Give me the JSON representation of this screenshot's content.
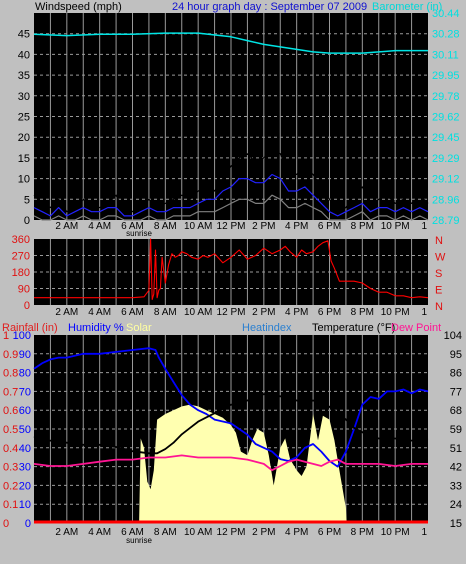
{
  "top_panel": {
    "left_label": "Windspeed (mph)",
    "title": "24 hour graph day : September 07 2009",
    "right_label": "Barometer (in)",
    "left_ticks": [
      "0",
      "5",
      "10",
      "15",
      "20",
      "25",
      "30",
      "35",
      "40",
      "45"
    ],
    "right_ticks": [
      "28.79",
      "28.96",
      "29.12",
      "29.29",
      "29.45",
      "29.62",
      "29.78",
      "29.95",
      "30.11",
      "30.28",
      "30.44"
    ]
  },
  "middle_panel": {
    "left_ticks": [
      "0",
      "90",
      "180",
      "270",
      "360"
    ],
    "compass_letters": [
      "N",
      "W",
      "S",
      "E",
      "N"
    ]
  },
  "bottom_panel": {
    "header": {
      "rain": "Rainfall (in)",
      "humidity": "Humidity %",
      "solar": "Solar",
      "heatindex": "Heatindex",
      "temperature": "Temperature (°F)",
      "dewpoint": "Dew Point"
    },
    "rain_ticks": [
      "0",
      "0.1",
      "0.2",
      "0.3",
      "0.4",
      "0.5",
      "0.6",
      "0.7",
      "0.8",
      "0.9",
      "1"
    ],
    "humidity_ticks": [
      "0",
      "10",
      "20",
      "30",
      "40",
      "50",
      "60",
      "70",
      "80",
      "90",
      "100"
    ],
    "temp_ticks": [
      "15",
      "24",
      "33",
      "42",
      "51",
      "59",
      "68",
      "77",
      "86",
      "95",
      "104"
    ]
  },
  "x_axis": {
    "hour_labels": [
      "2 AM",
      "4 AM",
      "6 AM",
      "8 AM",
      "10 AM",
      "12 PM",
      "2 PM",
      "4 PM",
      "6 PM",
      "8 PM",
      "10 PM",
      "1"
    ],
    "sunrise_label": "sunrise"
  },
  "colors": {
    "background": "#000000",
    "grid": "#9a9a9a",
    "wind_gust": "#000000",
    "wind_avg": "#2222ff",
    "wind_min": "#808080",
    "barometer": "#00e5e5",
    "direction": "#ff0000",
    "humidity": "#0000ff",
    "temperature": "#000000",
    "dewpoint": "#ff1493",
    "solar": "#ffffb0",
    "rain": "#ff0000"
  },
  "chart_data": [
    {
      "type": "line",
      "title": "24 hour graph day : September 07 2009",
      "xlabel": "",
      "ylabel": "Windspeed (mph)",
      "ylim": [
        0,
        50
      ],
      "y2label": "Barometer (in)",
      "y2lim": [
        28.79,
        30.44
      ],
      "x_unit": "hour",
      "xlim": [
        0,
        24
      ],
      "series": [
        {
          "axis": "left",
          "color": "#000000",
          "x": [
            0,
            0.5,
            1,
            1.5,
            2,
            2.5,
            3,
            3.5,
            4,
            4.5,
            5,
            5.5,
            6,
            6.5,
            7,
            7.5,
            8,
            8.5,
            9,
            9.5,
            10,
            10.5,
            11,
            11.5,
            12,
            12.5,
            13,
            13.5,
            14,
            14.5,
            15,
            15.5,
            16,
            16.5,
            17,
            17.5,
            18,
            18.5,
            19,
            19.5,
            20,
            20.5,
            21,
            21.5,
            22,
            22.5,
            23,
            23.5,
            24
          ],
          "values": [
            6,
            4,
            3,
            5,
            2,
            3,
            5,
            4,
            3,
            4,
            6,
            2,
            2,
            4,
            5,
            3,
            4,
            5,
            6,
            5,
            7,
            8,
            7,
            10,
            13,
            15,
            16,
            14,
            15,
            17,
            16,
            12,
            11,
            13,
            11,
            8,
            5,
            2,
            3,
            6,
            8,
            4,
            5,
            6,
            4,
            5,
            4,
            6,
            4
          ]
        },
        {
          "axis": "left",
          "color": "#2222ff",
          "x": [
            0,
            0.5,
            1,
            1.5,
            2,
            2.5,
            3,
            3.5,
            4,
            4.5,
            5,
            5.5,
            6,
            6.5,
            7,
            7.5,
            8,
            8.5,
            9,
            9.5,
            10,
            10.5,
            11,
            11.5,
            12,
            12.5,
            13,
            13.5,
            14,
            14.5,
            15,
            15.5,
            16,
            16.5,
            17,
            17.5,
            18,
            18.5,
            19,
            19.5,
            20,
            20.5,
            21,
            21.5,
            22,
            22.5,
            23,
            23.5,
            24
          ],
          "values": [
            3,
            2,
            1,
            3,
            1,
            2,
            3,
            2,
            2,
            3,
            3,
            1,
            1,
            2,
            3,
            2,
            2,
            3,
            3,
            3,
            4,
            5,
            5,
            7,
            8,
            10,
            10,
            9,
            9,
            11,
            10,
            7,
            7,
            8,
            6,
            4,
            2,
            1,
            2,
            3,
            4,
            2,
            3,
            3,
            2,
            3,
            2,
            3,
            2
          ]
        },
        {
          "axis": "left",
          "color": "#808080",
          "x": [
            0,
            0.5,
            1,
            1.5,
            2,
            2.5,
            3,
            3.5,
            4,
            4.5,
            5,
            5.5,
            6,
            6.5,
            7,
            7.5,
            8,
            8.5,
            9,
            9.5,
            10,
            10.5,
            11,
            11.5,
            12,
            12.5,
            13,
            13.5,
            14,
            14.5,
            15,
            15.5,
            16,
            16.5,
            17,
            17.5,
            18,
            18.5,
            19,
            19.5,
            20,
            20.5,
            21,
            21.5,
            22,
            22.5,
            23,
            23.5,
            24
          ],
          "values": [
            1,
            0,
            0,
            1,
            0,
            0,
            1,
            0,
            0,
            1,
            1,
            0,
            0,
            0,
            1,
            0,
            0,
            1,
            1,
            1,
            2,
            2,
            2,
            3,
            4,
            5,
            5,
            4,
            4,
            6,
            5,
            3,
            3,
            4,
            3,
            2,
            0,
            0,
            0,
            1,
            2,
            0,
            1,
            1,
            0,
            1,
            0,
            1,
            0
          ]
        },
        {
          "name": "Barometer (in)",
          "axis": "right",
          "color": "#00e5e5",
          "x": [
            0,
            2,
            4,
            6,
            8,
            10,
            12,
            13,
            14,
            15,
            16,
            17,
            18,
            19,
            20,
            21,
            22,
            23,
            24
          ],
          "values": [
            30.27,
            30.26,
            30.27,
            30.27,
            30.28,
            30.28,
            30.25,
            30.22,
            30.19,
            30.17,
            30.15,
            30.13,
            30.12,
            30.12,
            30.12,
            30.13,
            30.14,
            30.14,
            30.14
          ]
        }
      ]
    },
    {
      "type": "line",
      "title": "",
      "ylabel": "",
      "ylim": [
        0,
        360
      ],
      "x_unit": "hour",
      "xlim": [
        0,
        24
      ],
      "series": [
        {
          "color": "#ff0000",
          "x": [
            0,
            2,
            4,
            5,
            6,
            6.7,
            7,
            7.1,
            7.2,
            7.3,
            7.4,
            7.5,
            7.6,
            7.7,
            7.8,
            8,
            8.2,
            8.4,
            8.6,
            8.8,
            9,
            9.3,
            9.6,
            10,
            10.3,
            10.6,
            11,
            11.5,
            12,
            12.5,
            13,
            13.5,
            14,
            14.5,
            15,
            15.3,
            15.6,
            16,
            16.3,
            16.6,
            17,
            17.3,
            17.6,
            17.9,
            18.1,
            18.3,
            18.6,
            19,
            19.5,
            20,
            20.5,
            21,
            21.5,
            22,
            22.5,
            23,
            23.5,
            24
          ],
          "values": [
            40,
            40,
            40,
            40,
            40,
            45,
            80,
            360,
            30,
            60,
            300,
            40,
            80,
            90,
            260,
            120,
            220,
            280,
            260,
            270,
            290,
            280,
            260,
            250,
            270,
            260,
            280,
            230,
            260,
            300,
            250,
            270,
            310,
            280,
            300,
            320,
            290,
            260,
            300,
            280,
            290,
            320,
            340,
            350,
            240,
            200,
            130,
            130,
            130,
            120,
            90,
            70,
            70,
            50,
            50,
            40,
            45,
            40
          ]
        }
      ]
    },
    {
      "type": "line",
      "title": "",
      "ylabel": "Humidity %",
      "ylim": [
        0,
        100
      ],
      "y2label": "Temperature (°F)",
      "y2lim": [
        15,
        104
      ],
      "y3label": "Rainfall (in)",
      "y3lim": [
        0,
        1
      ],
      "x_unit": "hour",
      "xlim": [
        0,
        24
      ],
      "series": [
        {
          "name": "Solar",
          "kind": "area",
          "axis": "humidity",
          "color": "#ffffb0",
          "x": [
            6.4,
            6.5,
            6.7,
            6.9,
            7.1,
            7.3,
            7.5,
            8,
            8.5,
            9,
            9.5,
            10,
            10.5,
            11,
            11.5,
            12,
            12.3,
            12.6,
            13,
            13.3,
            13.6,
            14,
            14.3,
            14.6,
            15,
            15.3,
            15.6,
            16,
            16.3,
            16.6,
            17,
            17.3,
            17.6,
            18,
            18.3,
            18.6,
            19,
            19.05
          ],
          "values": [
            0,
            45,
            40,
            22,
            18,
            28,
            55,
            58,
            60,
            62,
            63,
            62,
            60,
            58,
            56,
            52,
            48,
            38,
            36,
            44,
            50,
            48,
            36,
            20,
            40,
            45,
            34,
            28,
            25,
            30,
            58,
            44,
            57,
            55,
            44,
            28,
            8,
            0
          ]
        },
        {
          "name": "Humidity %",
          "axis": "humidity",
          "color": "#0000ff",
          "x": [
            0,
            0.5,
            1,
            1.5,
            2,
            3,
            4,
            5,
            6,
            7,
            7.4,
            7.6,
            8,
            8.5,
            9,
            9.5,
            10,
            10.5,
            11,
            11.5,
            12,
            12.5,
            13,
            13.5,
            14,
            14.5,
            15,
            15.5,
            16,
            16.5,
            17,
            17.5,
            18,
            18.5,
            19,
            19.5,
            20,
            20.5,
            21,
            21.5,
            22,
            22.5,
            23,
            23.5,
            24
          ],
          "values": [
            82,
            85,
            87,
            88,
            88,
            90,
            90,
            91,
            92,
            93,
            92,
            88,
            82,
            75,
            68,
            63,
            60,
            58,
            55,
            54,
            53,
            50,
            47,
            42,
            40,
            38,
            34,
            33,
            35,
            40,
            42,
            38,
            33,
            30,
            38,
            50,
            63,
            67,
            66,
            70,
            70,
            71,
            69,
            71,
            70
          ]
        },
        {
          "name": "Temperature (°F)",
          "axis": "temp",
          "color": "#000000",
          "x": [
            0,
            0.5,
            1,
            2,
            3,
            4,
            5,
            6,
            7,
            7.5,
            8,
            8.5,
            9,
            9.5,
            10,
            11,
            12,
            13,
            14,
            15,
            16,
            16.5,
            17,
            17.5,
            18,
            18.5,
            19,
            19.5,
            20,
            20.5,
            21,
            22,
            23,
            24
          ],
          "values": [
            56,
            54,
            54,
            53,
            52,
            52,
            51,
            49,
            48,
            48,
            50,
            53,
            57,
            60,
            63,
            67,
            71,
            73,
            76,
            75,
            73,
            72,
            73,
            72,
            70,
            67,
            64,
            60,
            58,
            56,
            55,
            55,
            54,
            55
          ]
        },
        {
          "name": "Dew Point",
          "axis": "temp",
          "color": "#ff1493",
          "x": [
            0,
            1,
            2,
            3,
            4,
            5,
            6,
            7,
            8,
            9,
            10,
            11,
            12,
            13,
            14,
            14.5,
            15,
            15.5,
            16,
            16.5,
            17,
            17.5,
            18,
            18.5,
            19,
            20,
            21,
            22,
            23,
            24
          ],
          "values": [
            43,
            42,
            42,
            43,
            44,
            45,
            45,
            46,
            46,
            47,
            46,
            46,
            46,
            45,
            43,
            40,
            42,
            44,
            45,
            44,
            43,
            42,
            44,
            45,
            43,
            43,
            43,
            42,
            43,
            43
          ]
        },
        {
          "name": "Rainfall (in)",
          "axis": "rain",
          "color": "#ff0000",
          "x": [
            0,
            24
          ],
          "values": [
            0,
            0
          ]
        }
      ]
    }
  ]
}
